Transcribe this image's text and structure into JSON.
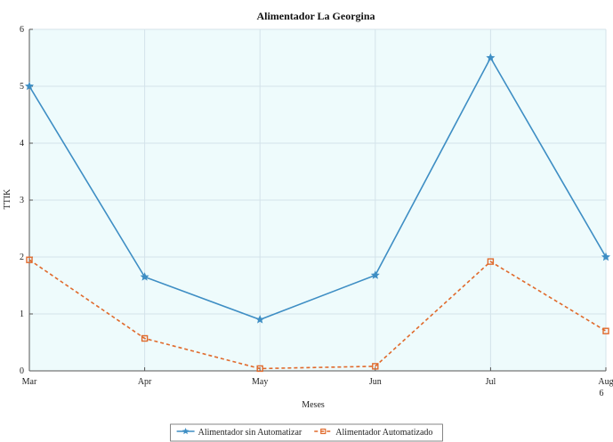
{
  "chart_data": {
    "type": "line",
    "title": "Alimentador La Georgina",
    "xlabel": "Meses",
    "ylabel": "TTIK",
    "x_label_suffix": "6",
    "categories": [
      "Mar",
      "Apr",
      "May",
      "Jun",
      "Jul",
      "Aug"
    ],
    "ylim": [
      0,
      6
    ],
    "yticks": [
      0,
      1,
      2,
      3,
      4,
      5,
      6
    ],
    "grid": true,
    "legend_position": "bottom",
    "series": [
      {
        "name": "Alimentador sin Automatizar",
        "values": [
          5.0,
          1.65,
          0.9,
          1.68,
          5.5,
          2.0
        ],
        "color": "#3e8ec4",
        "dash": "solid",
        "marker": "star"
      },
      {
        "name": "Alimentador Automatizado",
        "values": [
          1.95,
          0.57,
          0.04,
          0.08,
          1.92,
          0.7
        ],
        "color": "#e06a2c",
        "dash": "dashed",
        "marker": "square"
      }
    ],
    "colors": {
      "plot_background": "#eefbfc",
      "grid": "#d4e3ea",
      "axis": "#555555"
    }
  }
}
